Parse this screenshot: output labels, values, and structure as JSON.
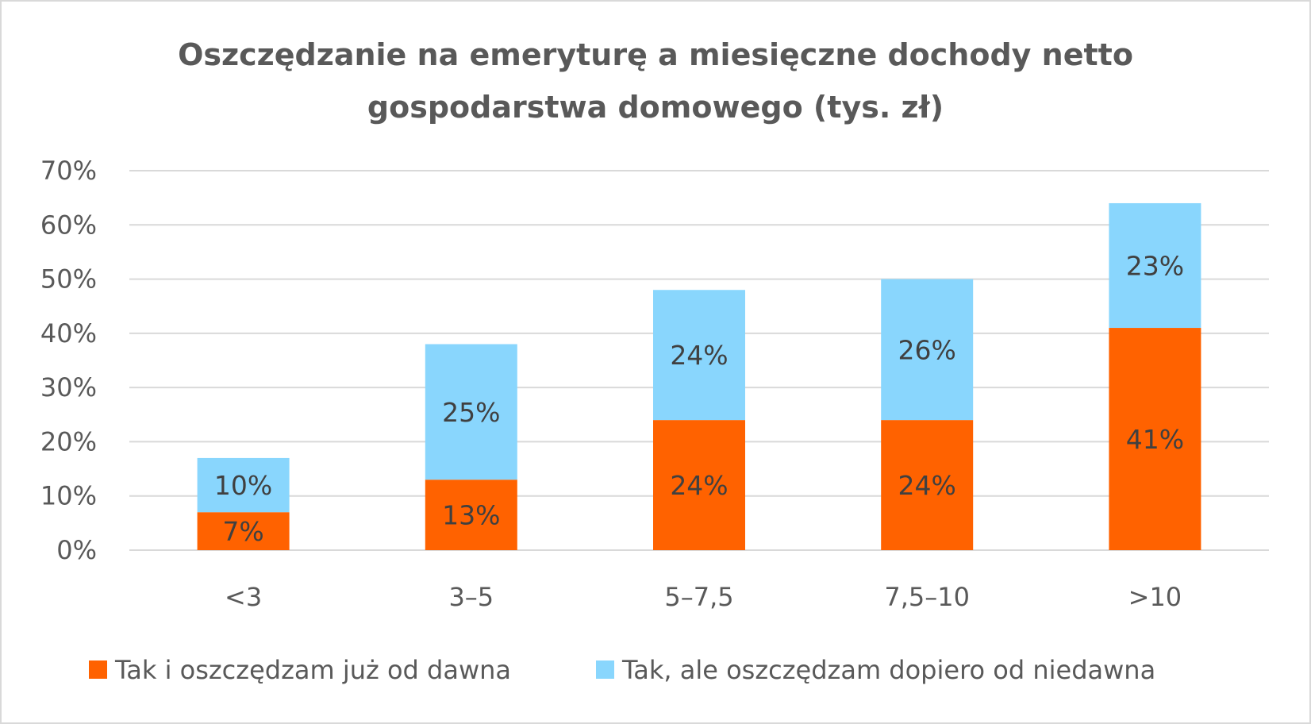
{
  "chart_data": {
    "type": "bar",
    "stacked": true,
    "title": [
      "Oszczędzanie na emeryturę a miesięczne dochody netto",
      "gospodarstwa domowego (tys. zł)"
    ],
    "xlabel": "",
    "ylabel": "",
    "categories": [
      "<3",
      "3–5",
      "5–7,5",
      "7,5–10",
      ">10"
    ],
    "series": [
      {
        "name": "Tak i oszczędzam już od dawna",
        "color": "#FF6200",
        "values": [
          7,
          13,
          24,
          24,
          41
        ],
        "labels": [
          "7%",
          "13%",
          "24%",
          "24%",
          "41%"
        ]
      },
      {
        "name": "Tak, ale oszczędzam dopiero od niedawna",
        "color": "#89D6FD",
        "values": [
          10,
          25,
          24,
          26,
          23
        ],
        "labels": [
          "10%",
          "25%",
          "24%",
          "26%",
          "23%"
        ]
      }
    ],
    "ylim": [
      0,
      70
    ],
    "yticks": [
      "0%",
      "10%",
      "20%",
      "30%",
      "40%",
      "50%",
      "60%",
      "70%"
    ],
    "grid": true,
    "legend_position": "bottom"
  }
}
